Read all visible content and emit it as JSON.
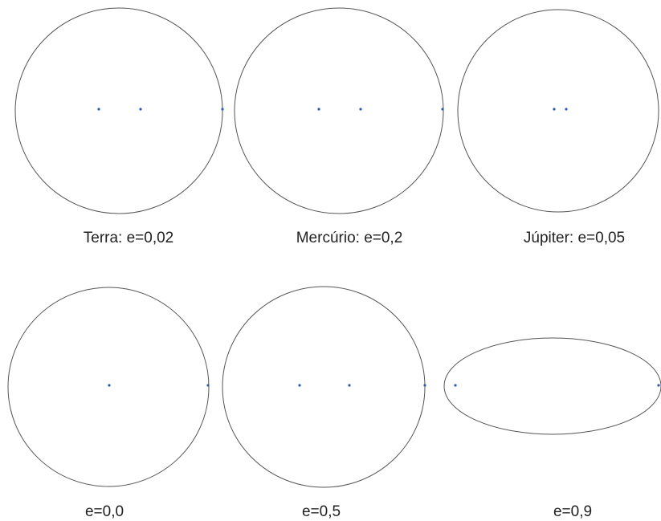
{
  "colors": {
    "orbit_stroke": "#555555",
    "point_color": "#2a5db0",
    "label_color": "#222222"
  },
  "orbits": [
    {
      "label": "Terra: e=0,02",
      "eccentricity": 0.02
    },
    {
      "label": "Mercúrio: e=0,2",
      "eccentricity": 0.2
    },
    {
      "label": "Júpiter: e=0,05",
      "eccentricity": 0.05
    },
    {
      "label": "e=0,0",
      "eccentricity": 0.0
    },
    {
      "label": "e=0,5",
      "eccentricity": 0.5
    },
    {
      "label": "e=0,9",
      "eccentricity": 0.9
    }
  ]
}
